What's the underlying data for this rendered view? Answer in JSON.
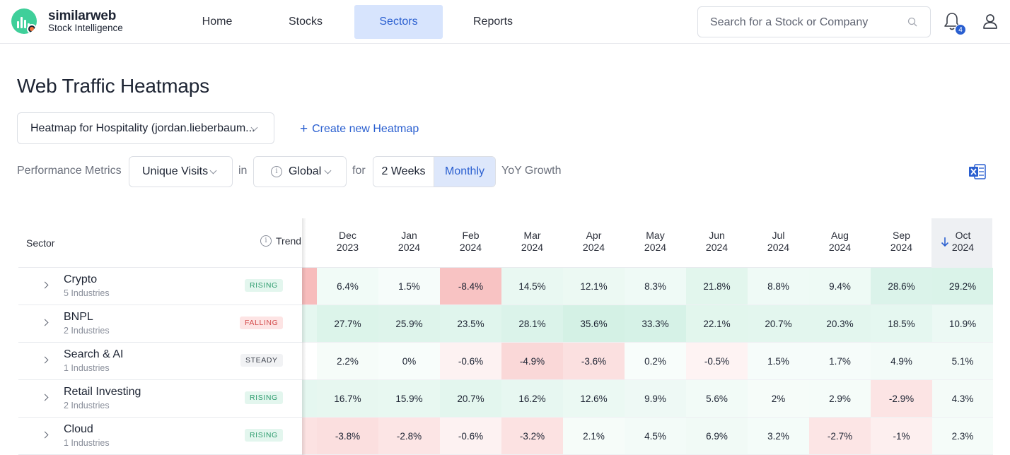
{
  "brand": {
    "name": "similarweb",
    "subtitle": "Stock Intelligence"
  },
  "nav": {
    "items": [
      {
        "label": "Home",
        "active": false
      },
      {
        "label": "Stocks",
        "active": false
      },
      {
        "label": "Sectors",
        "active": true
      },
      {
        "label": "Reports",
        "active": false
      }
    ]
  },
  "search": {
    "placeholder": "Search for a Stock or Company"
  },
  "notifications": {
    "count": "4"
  },
  "page": {
    "title": "Web Traffic Heatmaps",
    "heatmap_select": "Heatmap for Hospitality (jordan.lieberbaum...",
    "create_label": "Create new Heatmap"
  },
  "filters": {
    "performance_label": "Performance Metrics",
    "metric": "Unique Visits",
    "in_label": "in",
    "region": "Global",
    "for_label": "for",
    "period_options": [
      "2 Weeks",
      "Monthly"
    ],
    "period_selected": "Monthly",
    "growth_label": "YoY Growth"
  },
  "table": {
    "sector_header": "Sector",
    "trend_header": "Trend",
    "columns": [
      {
        "month": "Dec",
        "year": "2023"
      },
      {
        "month": "Jan",
        "year": "2024"
      },
      {
        "month": "Feb",
        "year": "2024"
      },
      {
        "month": "Mar",
        "year": "2024"
      },
      {
        "month": "Apr",
        "year": "2024"
      },
      {
        "month": "May",
        "year": "2024"
      },
      {
        "month": "Jun",
        "year": "2024"
      },
      {
        "month": "Jul",
        "year": "2024"
      },
      {
        "month": "Aug",
        "year": "2024"
      },
      {
        "month": "Sep",
        "year": "2024"
      },
      {
        "month": "Oct",
        "year": "2024"
      }
    ],
    "sorted_column": "Oct 2024",
    "rows": [
      {
        "name": "Crypto",
        "sub": "5 Industries",
        "trend": "RISING",
        "cells": [
          {
            "text": "6.4%",
            "value": 6.4
          },
          {
            "text": "1.5%",
            "value": 1.5
          },
          {
            "text": "-8.4%",
            "value": -8.4
          },
          {
            "text": "14.5%",
            "value": 14.5
          },
          {
            "text": "12.1%",
            "value": 12.1
          },
          {
            "text": "8.3%",
            "value": 8.3
          },
          {
            "text": "21.8%",
            "value": 21.8
          },
          {
            "text": "8.8%",
            "value": 8.8
          },
          {
            "text": "9.4%",
            "value": 9.4
          },
          {
            "text": "28.6%",
            "value": 28.6
          },
          {
            "text": "29.2%",
            "value": 29.2
          }
        ]
      },
      {
        "name": "BNPL",
        "sub": "2 Industries",
        "trend": "FALLING",
        "cells": [
          {
            "text": "27.7%",
            "value": 27.7
          },
          {
            "text": "25.9%",
            "value": 25.9
          },
          {
            "text": "23.5%",
            "value": 23.5
          },
          {
            "text": "28.1%",
            "value": 28.1
          },
          {
            "text": "35.6%",
            "value": 35.6
          },
          {
            "text": "33.3%",
            "value": 33.3
          },
          {
            "text": "22.1%",
            "value": 22.1
          },
          {
            "text": "20.7%",
            "value": 20.7
          },
          {
            "text": "20.3%",
            "value": 20.3
          },
          {
            "text": "18.5%",
            "value": 18.5
          },
          {
            "text": "10.9%",
            "value": 10.9
          }
        ]
      },
      {
        "name": "Search & AI",
        "sub": "1 Industries",
        "trend": "STEADY",
        "cells": [
          {
            "text": "2.2%",
            "value": 2.2
          },
          {
            "text": "0%",
            "value": 0
          },
          {
            "text": "-0.6%",
            "value": -0.6
          },
          {
            "text": "-4.9%",
            "value": -4.9
          },
          {
            "text": "-3.6%",
            "value": -3.6
          },
          {
            "text": "0.2%",
            "value": 0.2
          },
          {
            "text": "-0.5%",
            "value": -0.5
          },
          {
            "text": "1.5%",
            "value": 1.5
          },
          {
            "text": "1.7%",
            "value": 1.7
          },
          {
            "text": "4.9%",
            "value": 4.9
          },
          {
            "text": "5.1%",
            "value": 5.1
          }
        ]
      },
      {
        "name": "Retail Investing",
        "sub": "2 Industries",
        "trend": "RISING",
        "cells": [
          {
            "text": "16.7%",
            "value": 16.7
          },
          {
            "text": "15.9%",
            "value": 15.9
          },
          {
            "text": "20.7%",
            "value": 20.7
          },
          {
            "text": "16.2%",
            "value": 16.2
          },
          {
            "text": "12.6%",
            "value": 12.6
          },
          {
            "text": "9.9%",
            "value": 9.9
          },
          {
            "text": "5.6%",
            "value": 5.6
          },
          {
            "text": "2%",
            "value": 2
          },
          {
            "text": "2.9%",
            "value": 2.9
          },
          {
            "text": "-2.9%",
            "value": -2.9
          },
          {
            "text": "4.3%",
            "value": 4.3
          }
        ]
      },
      {
        "name": "Cloud",
        "sub": "1 Industries",
        "trend": "RISING",
        "cells": [
          {
            "text": "-3.8%",
            "value": -3.8
          },
          {
            "text": "-2.8%",
            "value": -2.8
          },
          {
            "text": "-0.6%",
            "value": -0.6
          },
          {
            "text": "-3.2%",
            "value": -3.2
          },
          {
            "text": "2.1%",
            "value": 2.1
          },
          {
            "text": "4.5%",
            "value": 4.5
          },
          {
            "text": "6.9%",
            "value": 6.9
          },
          {
            "text": "3.2%",
            "value": 3.2
          },
          {
            "text": "-2.7%",
            "value": -2.7
          },
          {
            "text": "-1%",
            "value": -1
          },
          {
            "text": "2.3%",
            "value": 2.3
          }
        ]
      }
    ]
  },
  "colors": {
    "accent": "#2a5fd0",
    "rising_bg": "#e3f6ee",
    "rising_fg": "#2e9c6e",
    "falling_bg": "#fde4e4",
    "falling_fg": "#d34b4b",
    "steady_bg": "#f1f2f4",
    "steady_fg": "#3a3f4a"
  }
}
